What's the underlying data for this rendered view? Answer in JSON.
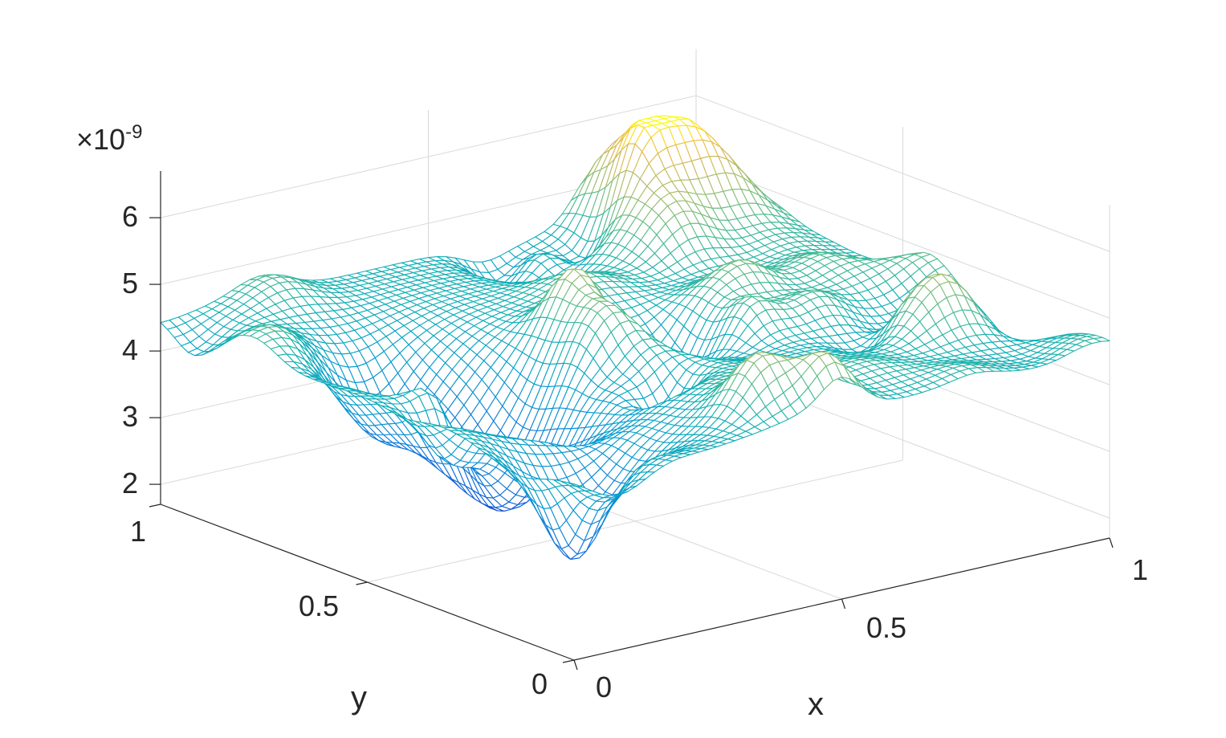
{
  "chart_data": {
    "type": "surface",
    "style": "mesh",
    "colormap": "parula",
    "xlabel": "x",
    "ylabel": "y",
    "zlabel": "",
    "xlim": [
      0,
      1
    ],
    "ylim": [
      0,
      1
    ],
    "zlim": [
      1.7,
      6.7
    ],
    "xticks": [
      0,
      0.5,
      1
    ],
    "xtick_labels": [
      "0",
      "0.5",
      "1"
    ],
    "yticks": [
      0,
      0.5,
      1
    ],
    "ytick_labels": [
      "0",
      "0.5",
      "1"
    ],
    "zticks": [
      2,
      3,
      4,
      5,
      6
    ],
    "ztick_labels": [
      "2",
      "3",
      "4",
      "5",
      "6"
    ],
    "z_multiplier": "×10",
    "z_exponent": "-9",
    "grid": true,
    "box": true,
    "z_range_shown": [
      2.0,
      6.2
    ],
    "surface_description_values": {
      "mean_level": 4.5,
      "deep_valley_min": 2.0,
      "highest_peak": 6.2
    }
  }
}
